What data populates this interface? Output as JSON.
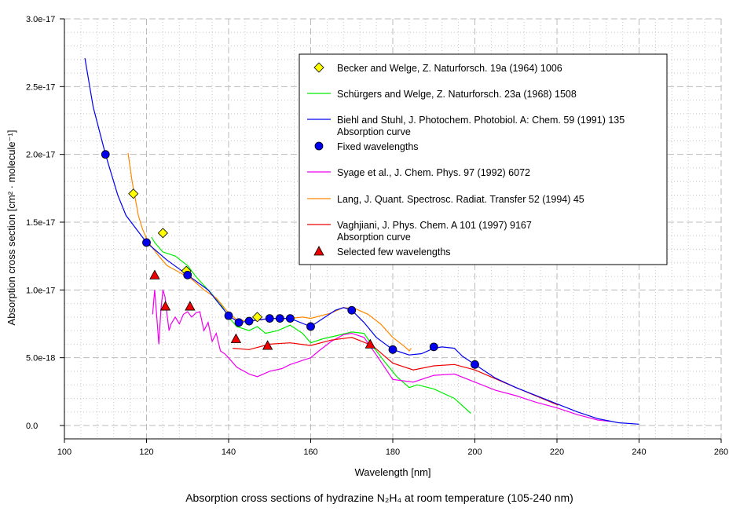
{
  "chart_data": {
    "type": "line",
    "title": "Absorption cross sections of hydrazine N₂H₄ at room temperature (105-240 nm)",
    "xlabel": "Wavelength [nm]",
    "ylabel": "Absorption cross section [cm² · molecule⁻¹]",
    "xlim": [
      100,
      260
    ],
    "ylim": [
      -1e-18,
      3e-17
    ],
    "y_unit_scale": 1e-18,
    "grid": true,
    "legend_position": "top-right",
    "x_ticks": [
      100,
      120,
      140,
      160,
      180,
      200,
      220,
      240,
      260
    ],
    "x_tick_labels": [
      "100",
      "120",
      "140",
      "160",
      "180",
      "200",
      "220",
      "240",
      "260"
    ],
    "y_ticks": [
      0,
      5,
      10,
      15,
      20,
      25,
      30
    ],
    "y_tick_labels": [
      "0.0",
      "5.0e-18",
      "1.0e-17",
      "1.5e-17",
      "2.0e-17",
      "2.5e-17",
      "3.0e-17"
    ],
    "series": [
      {
        "name": "Becker and Welge, Z. Naturforsch. 19a (1964) 1006",
        "kind": "diamond",
        "color": "#ffff00",
        "x": [
          116.8,
          124,
          129.7,
          147
        ],
        "y": [
          17.1,
          14.2,
          11.4,
          8.0
        ]
      },
      {
        "name": "Schürgers and Welge, Z. Naturforsch. 23a (1968) 1508",
        "kind": "line",
        "color": "#00ee00",
        "x": [
          121.2,
          122,
          124,
          127,
          130,
          132,
          135,
          138,
          140,
          142,
          145,
          147,
          149,
          152,
          155,
          158,
          160,
          163,
          166,
          170,
          173,
          175,
          178,
          181,
          184,
          186,
          190,
          195,
          199
        ],
        "y": [
          13.9,
          13.5,
          12.8,
          12.5,
          11.8,
          11.0,
          10.0,
          9.0,
          8.0,
          7.3,
          7.0,
          7.3,
          6.8,
          7.0,
          7.4,
          6.8,
          6.1,
          6.4,
          6.6,
          6.9,
          6.8,
          5.9,
          4.7,
          3.6,
          2.8,
          3.0,
          2.7,
          2.0,
          0.9
        ]
      },
      {
        "name": "Biehl and Stuhl, J. Photochem. Photobiol. A: Chem. 59 (1991) 135",
        "name2": "Absorption curve",
        "kind": "line",
        "color": "#0000ee",
        "x": [
          105,
          107,
          110,
          113,
          115,
          118,
          120,
          125,
          130,
          135,
          140,
          142.5,
          145,
          150,
          155,
          160,
          163,
          166,
          168,
          170,
          173,
          176,
          180,
          184,
          187,
          190,
          192,
          195,
          197,
          200,
          205,
          210,
          215,
          220,
          225,
          230,
          235,
          240
        ],
        "y": [
          27.1,
          23.5,
          20.0,
          17.0,
          15.5,
          14.3,
          13.5,
          12.2,
          11.1,
          10.0,
          8.1,
          7.6,
          7.7,
          7.9,
          7.9,
          7.3,
          7.9,
          8.5,
          8.7,
          8.5,
          7.6,
          6.5,
          5.6,
          5.2,
          5.3,
          5.7,
          5.8,
          5.7,
          5.1,
          4.5,
          3.5,
          2.8,
          2.2,
          1.6,
          1.0,
          0.5,
          0.2,
          0.1
        ]
      },
      {
        "name": "Fixed wavelengths",
        "kind": "circle",
        "color": "#0000ee",
        "x": [
          110,
          120,
          130,
          140,
          142.5,
          145,
          150,
          152.5,
          155,
          160,
          170,
          180,
          190,
          200
        ],
        "y": [
          20.0,
          13.5,
          11.1,
          8.1,
          7.6,
          7.7,
          7.9,
          7.9,
          7.9,
          7.3,
          8.5,
          5.6,
          5.8,
          4.5
        ]
      },
      {
        "name": "Syage et al., J. Chem. Phys. 97 (1992) 6072",
        "kind": "line",
        "color": "#ee00ee",
        "x": [
          121.5,
          122,
          122.5,
          123,
          123.5,
          124,
          124.5,
          125,
          125.5,
          126,
          127,
          128,
          129,
          130,
          131,
          132,
          133,
          134,
          135,
          136,
          137,
          138,
          139,
          140,
          142,
          145,
          147,
          150,
          153,
          155,
          158,
          160,
          162,
          165,
          168,
          170,
          173,
          176,
          180,
          185,
          190,
          195,
          200,
          205,
          210,
          215,
          220,
          225,
          230,
          233
        ],
        "y": [
          8.2,
          10.0,
          8.0,
          6.0,
          8.5,
          10.0,
          9.5,
          8.2,
          7.0,
          7.5,
          8.0,
          7.5,
          8.2,
          8.4,
          8.0,
          8.3,
          8.4,
          7.0,
          7.6,
          6.2,
          6.8,
          5.5,
          5.3,
          5.0,
          4.3,
          3.8,
          3.6,
          4.0,
          4.2,
          4.5,
          4.8,
          5.0,
          5.5,
          6.2,
          6.7,
          6.8,
          6.5,
          5.2,
          3.4,
          3.2,
          3.7,
          3.8,
          3.2,
          2.6,
          2.2,
          1.7,
          1.3,
          0.8,
          0.4,
          0.3
        ]
      },
      {
        "name": "Lang, J. Quant. Spectrosc. Radiat. Transfer 52 (1994) 45",
        "kind": "line",
        "color": "#ff8800",
        "x": [
          115.5,
          116.5,
          118,
          119,
          120,
          121,
          123,
          125,
          128,
          131,
          134,
          137,
          140,
          142,
          145,
          148,
          150,
          155,
          158,
          160,
          165,
          168,
          171,
          174,
          177,
          180,
          183,
          184,
          184.5
        ],
        "y": [
          20.1,
          18.0,
          15.5,
          14.5,
          13.8,
          13.3,
          12.5,
          11.8,
          11.3,
          10.8,
          10.0,
          9.4,
          8.3,
          7.8,
          7.7,
          7.8,
          7.9,
          7.9,
          8.0,
          7.9,
          8.3,
          8.7,
          8.6,
          8.2,
          7.5,
          6.5,
          5.8,
          5.5,
          5.7
        ]
      },
      {
        "name": "Vaghjiani, J. Phys. Chem. A 101 (1997) 9167",
        "name2": "Absorption curve",
        "kind": "line",
        "color": "#ee0000",
        "x": [
          141,
          145,
          150,
          155,
          160,
          165,
          170,
          175,
          180,
          185,
          190,
          195,
          200,
          210,
          220.3
        ],
        "y": [
          5.7,
          5.6,
          6.0,
          6.1,
          5.9,
          6.3,
          6.5,
          5.9,
          4.6,
          4.1,
          4.4,
          4.5,
          4.1,
          2.8,
          1.5
        ]
      },
      {
        "name": "Selected few wavelengths",
        "kind": "triangle",
        "color": "#ee0000",
        "x": [
          122,
          124.6,
          130.6,
          141.8,
          149.5,
          174.5
        ],
        "y": [
          11.1,
          8.8,
          8.8,
          6.4,
          5.9,
          6.0
        ]
      }
    ]
  }
}
